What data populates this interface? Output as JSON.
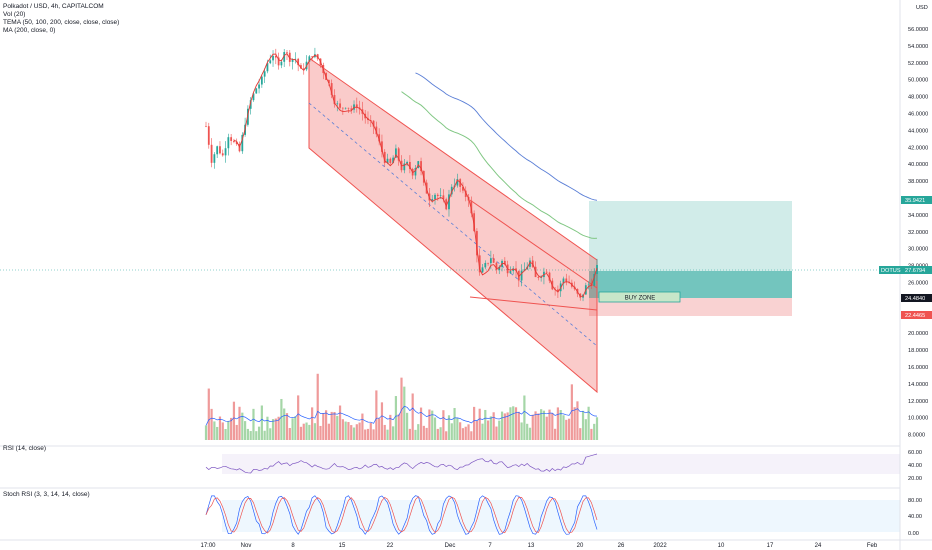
{
  "header": {
    "title": "Polkadot / USD, 4h, CAPITALCOM",
    "indicators": [
      "Vol (20)",
      "TEMA (50, 100, 200, close, close, close)",
      "MA (200, close, 0)"
    ]
  },
  "panes": {
    "rsi_label": "RSI (14, close)",
    "stoch_label": "Stoch RSI (3, 3, 14, 14, close)"
  },
  "axis": {
    "currency": "USD",
    "price_ticks": [
      "56.0000",
      "54.0000",
      "52.0000",
      "50.0000",
      "48.0000",
      "46.0000",
      "44.0000",
      "42.0000",
      "40.0000",
      "38.0000",
      "36.0000",
      "34.0000",
      "32.0000",
      "30.0000",
      "28.0000",
      "26.0000",
      "24.0000",
      "22.0000",
      "20.0000",
      "18.0000",
      "16.0000",
      "14.0000",
      "12.0000",
      "10.0000",
      "8.0000"
    ],
    "rsi_ticks": [
      "60.00",
      "40.00",
      "20.00"
    ],
    "stoch_ticks": [
      "80.00",
      "40.00",
      "0.00"
    ],
    "time_ticks": [
      "17:00",
      "Nov",
      "8",
      "15",
      "22",
      "Dec",
      "7",
      "13",
      "20",
      "26",
      "2022",
      "10",
      "17",
      "24",
      "Feb"
    ]
  },
  "price_tags": [
    {
      "text": "35.9421",
      "color": "#26a69a"
    },
    {
      "text": "DOTUSD",
      "color": "#26a69a"
    },
    {
      "text": "27.6794",
      "color": "#26a69a"
    },
    {
      "text": "24.4840",
      "color": "#131722"
    },
    {
      "text": "22.4465",
      "color": "#ef5350"
    }
  ],
  "annotations": {
    "buy_zone": "BUY ZONE"
  },
  "colors": {
    "up": "#26a69a",
    "down": "#ef5350",
    "channel_fill": "#ef5350",
    "target_fill": "#b2dfdb",
    "stop_fill": "#f8c7c7",
    "ma_blue": "#5b7fd6",
    "tema_green": "#81c784",
    "tema_red": "#e53935"
  },
  "chart_data": {
    "type": "candlestick",
    "symbol": "DOTUSD",
    "timeframe": "4h",
    "price_range": [
      8,
      57
    ],
    "last_price": 27.6794,
    "price_path": [
      [
        0,
        44.5
      ],
      [
        2,
        40.5
      ],
      [
        4,
        42
      ],
      [
        6,
        41
      ],
      [
        8,
        43.5
      ],
      [
        10,
        42.5
      ],
      [
        12,
        41.5
      ],
      [
        14,
        45
      ],
      [
        16,
        47.5
      ],
      [
        18,
        49
      ],
      [
        20,
        50
      ],
      [
        22,
        52
      ],
      [
        24,
        53
      ],
      [
        26,
        51.5
      ],
      [
        28,
        53.5
      ],
      [
        30,
        52.5
      ],
      [
        32,
        52.5
      ],
      [
        34,
        51
      ],
      [
        36,
        52
      ],
      [
        38,
        53
      ],
      [
        40,
        52.5
      ],
      [
        42,
        51
      ],
      [
        44,
        49.5
      ],
      [
        46,
        47.5
      ],
      [
        48,
        46.5
      ],
      [
        50,
        47
      ],
      [
        52,
        46.5
      ],
      [
        54,
        47
      ],
      [
        56,
        46
      ],
      [
        58,
        45
      ],
      [
        60,
        44.5
      ],
      [
        62,
        42.5
      ],
      [
        64,
        40.5
      ],
      [
        66,
        40
      ],
      [
        68,
        41.5
      ],
      [
        70,
        39.5
      ],
      [
        72,
        40
      ],
      [
        74,
        39
      ],
      [
        76,
        40.5
      ],
      [
        78,
        37.5
      ],
      [
        80,
        36
      ],
      [
        82,
        36.5
      ],
      [
        84,
        36
      ],
      [
        86,
        35
      ],
      [
        88,
        37.5
      ],
      [
        90,
        38
      ],
      [
        92,
        36.5
      ],
      [
        94,
        36
      ],
      [
        96,
        32
      ],
      [
        98,
        27
      ],
      [
        100,
        28
      ],
      [
        102,
        29
      ],
      [
        104,
        27.5
      ],
      [
        106,
        28.5
      ],
      [
        108,
        27.5
      ],
      [
        110,
        28
      ],
      [
        112,
        26.5
      ],
      [
        114,
        27.5
      ],
      [
        116,
        28.5
      ],
      [
        118,
        26.5
      ],
      [
        120,
        27
      ],
      [
        122,
        27.5
      ],
      [
        124,
        25.5
      ],
      [
        126,
        25
      ],
      [
        128,
        26.5
      ],
      [
        130,
        26
      ],
      [
        132,
        25
      ],
      [
        134,
        24
      ],
      [
        136,
        25.5
      ],
      [
        138,
        26
      ],
      [
        140,
        27.7
      ]
    ],
    "volume_range": [
      0,
      110
    ],
    "rsi_range": [
      0,
      100
    ],
    "stoch_range": [
      0,
      100
    ],
    "overlays": [
      "TEMA (50, 100, 200)",
      "MA (200)",
      "Descending channel",
      "Long position"
    ],
    "long_position": {
      "entry": 24.484,
      "target": 35.9421,
      "stop": 22.4465
    }
  }
}
